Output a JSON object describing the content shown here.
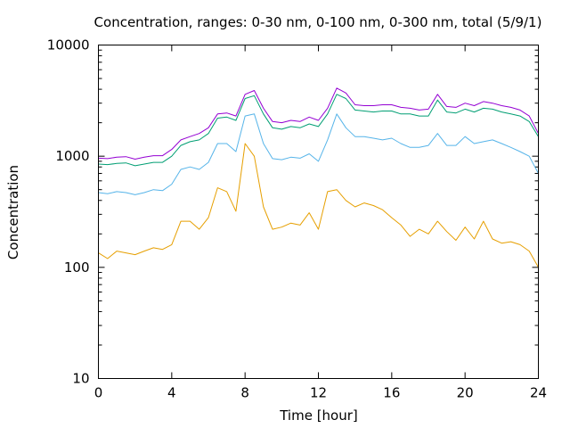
{
  "chart_data": {
    "type": "line",
    "title": "Concentration, ranges: 0-30 nm, 0-100 nm, 0-300 nm, total (5/9/1)",
    "xlabel": "Time [hour]",
    "ylabel": "Concentration",
    "xlim": [
      0,
      24
    ],
    "ylim": [
      10,
      10000
    ],
    "yscale": "log",
    "grid": false,
    "legend": "none",
    "xticks": [
      0,
      4,
      8,
      12,
      16,
      20,
      24
    ],
    "xtick_labels": [
      "0",
      "4",
      "8",
      "12",
      "16",
      "20",
      "24"
    ],
    "yticks": [
      10,
      100,
      1000,
      10000
    ],
    "ytick_labels": [
      "10",
      "100",
      "1000",
      "10000"
    ],
    "x": [
      0,
      0.5,
      1,
      1.5,
      2,
      2.5,
      3,
      3.5,
      4,
      4.5,
      5,
      5.5,
      6,
      6.5,
      7,
      7.5,
      8,
      8.5,
      9,
      9.5,
      10,
      10.5,
      11,
      11.5,
      12,
      12.5,
      13,
      13.5,
      14,
      14.5,
      15,
      15.5,
      16,
      16.5,
      17,
      17.5,
      18,
      18.5,
      19,
      19.5,
      20,
      20.5,
      21,
      21.5,
      22,
      22.5,
      23,
      23.5,
      24
    ],
    "series": [
      {
        "color": "#e69f00",
        "values": [
          135,
          120,
          140,
          135,
          130,
          140,
          150,
          145,
          160,
          260,
          260,
          220,
          280,
          520,
          480,
          320,
          1300,
          1000,
          350,
          220,
          230,
          250,
          240,
          310,
          220,
          480,
          500,
          400,
          350,
          380,
          360,
          330,
          280,
          240,
          190,
          220,
          200,
          260,
          210,
          175,
          230,
          180,
          260,
          180,
          165,
          170,
          160,
          140,
          100
        ]
      },
      {
        "color": "#56b4e9",
        "values": [
          470,
          460,
          480,
          470,
          450,
          470,
          500,
          490,
          560,
          760,
          800,
          760,
          880,
          1300,
          1300,
          1100,
          2300,
          2400,
          1300,
          950,
          930,
          980,
          960,
          1050,
          900,
          1400,
          2400,
          1800,
          1500,
          1500,
          1450,
          1400,
          1450,
          1300,
          1200,
          1200,
          1250,
          1600,
          1250,
          1250,
          1500,
          1300,
          1350,
          1400,
          1300,
          1200,
          1100,
          1000,
          700
        ]
      },
      {
        "color": "#009e73",
        "values": [
          850,
          840,
          860,
          870,
          820,
          850,
          880,
          880,
          1000,
          1250,
          1350,
          1400,
          1600,
          2200,
          2250,
          2100,
          3300,
          3500,
          2400,
          1800,
          1750,
          1850,
          1800,
          1950,
          1850,
          2400,
          3600,
          3300,
          2600,
          2550,
          2500,
          2550,
          2550,
          2400,
          2400,
          2300,
          2300,
          3200,
          2500,
          2450,
          2650,
          2500,
          2700,
          2650,
          2500,
          2400,
          2300,
          2050,
          1500
        ]
      },
      {
        "color": "#9400d3",
        "values": [
          960,
          950,
          980,
          990,
          940,
          980,
          1010,
          1010,
          1150,
          1400,
          1500,
          1600,
          1800,
          2400,
          2450,
          2300,
          3600,
          3900,
          2700,
          2050,
          2000,
          2100,
          2050,
          2250,
          2100,
          2700,
          4100,
          3700,
          2900,
          2850,
          2850,
          2900,
          2900,
          2750,
          2700,
          2600,
          2650,
          3600,
          2800,
          2750,
          3000,
          2850,
          3100,
          3000,
          2850,
          2750,
          2600,
          2300,
          1600
        ]
      }
    ]
  }
}
